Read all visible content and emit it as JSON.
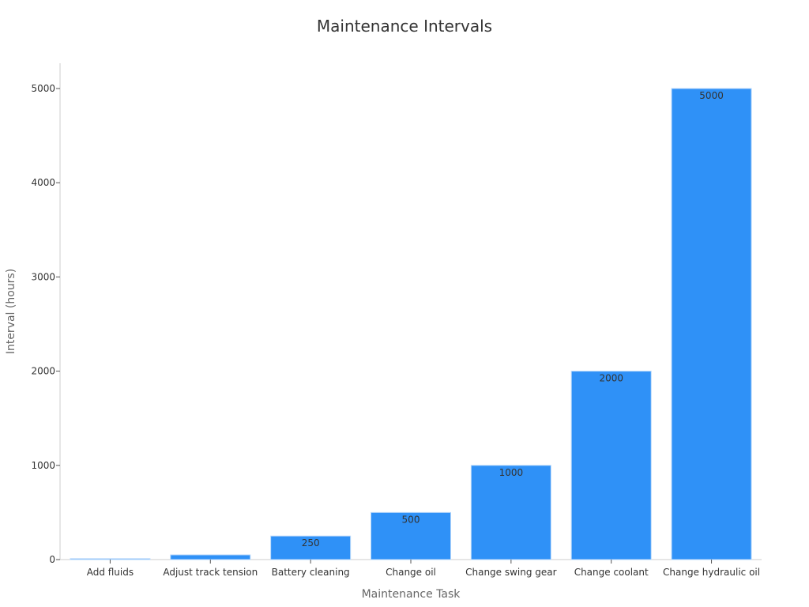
{
  "chart_data": {
    "type": "bar",
    "title": "Maintenance Intervals",
    "xlabel": "Maintenance Task",
    "ylabel": "Interval (hours)",
    "categories": [
      "Add fluids",
      "Adjust track tension",
      "Battery cleaning",
      "Change oil",
      "Change swing gear",
      "Change coolant",
      "Change hydraulic oil"
    ],
    "values": [
      10,
      50,
      250,
      500,
      1000,
      2000,
      5000
    ],
    "data_labels": [
      "",
      "",
      "250",
      "500",
      "1000",
      "2000",
      "5000"
    ],
    "ylim": [
      0,
      5250
    ],
    "yticks": [
      0,
      1000,
      2000,
      3000,
      4000,
      5000
    ],
    "bar_color": "#2f91f7",
    "grid": false,
    "legend": "none"
  }
}
